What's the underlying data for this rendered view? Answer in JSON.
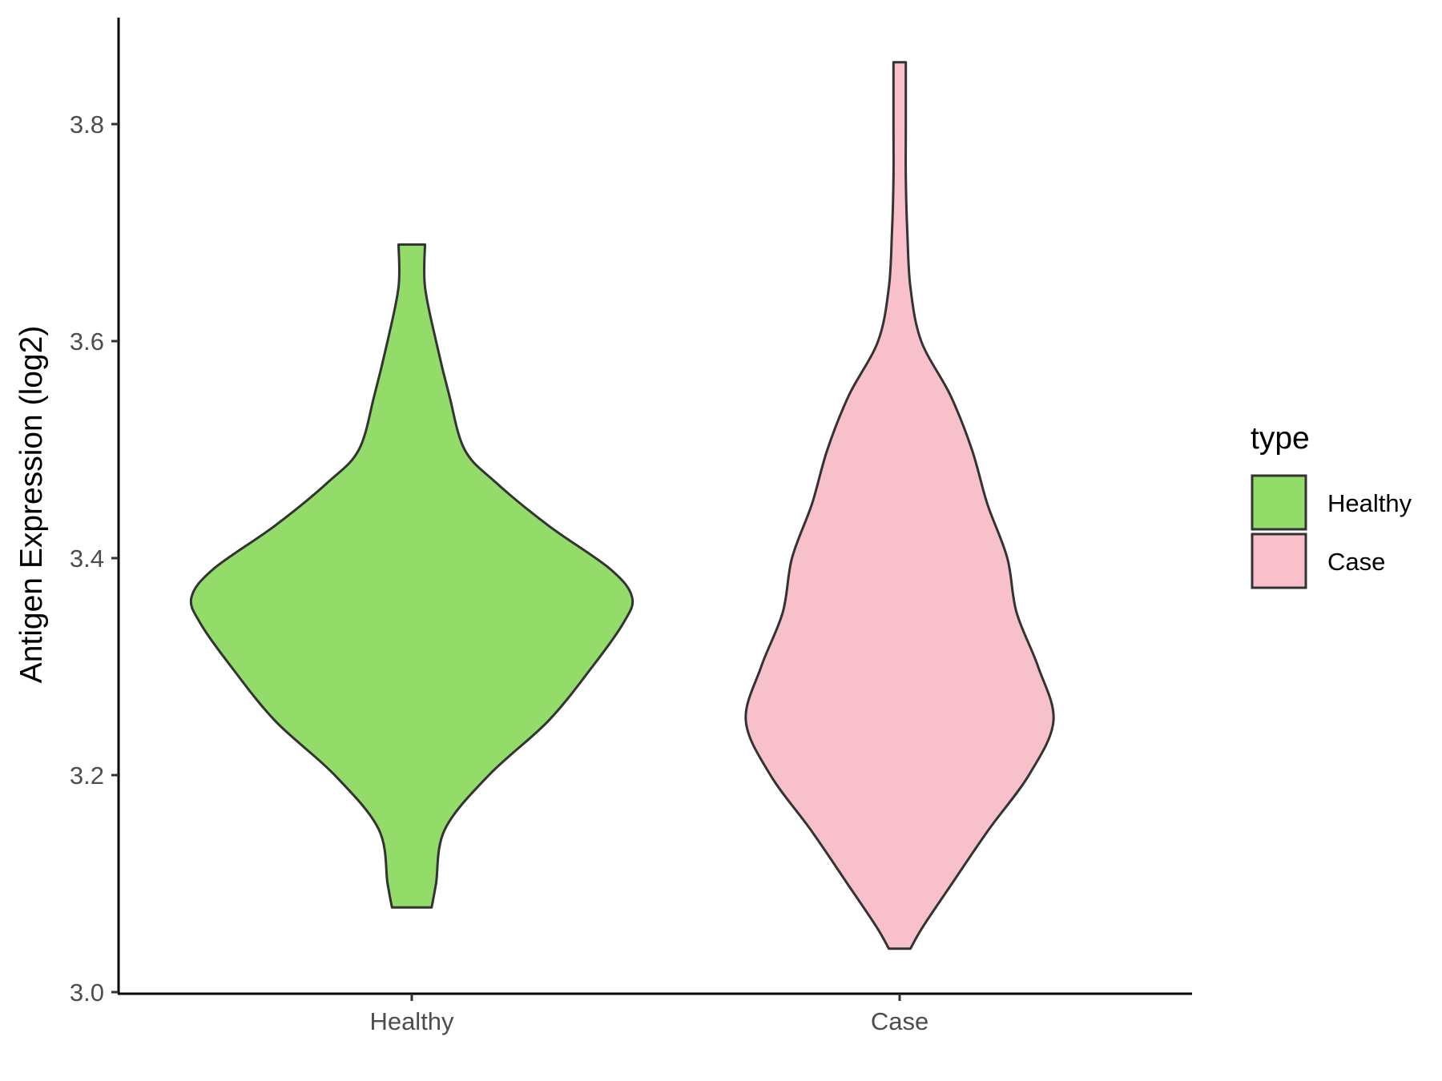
{
  "chart_data": {
    "type": "violin",
    "title": "",
    "xlabel": "",
    "ylabel": "Antigen Expression (log2)",
    "ylim": [
      3.0,
      3.9
    ],
    "yticks": [
      "3.0",
      "3.2",
      "3.4",
      "3.6",
      "3.8"
    ],
    "categories": [
      "Healthy",
      "Case"
    ],
    "grid": false,
    "legend": {
      "title": "type",
      "position": "right",
      "entries": [
        {
          "label": "Healthy",
          "color": "#93dc6a"
        },
        {
          "label": "Case",
          "color": "#f8c0cb"
        }
      ]
    },
    "series": [
      {
        "name": "Healthy",
        "color": "#93dc6a",
        "y_min": 3.078,
        "y_max": 3.689,
        "density_profile": [
          {
            "y": 3.078,
            "w": 0.09
          },
          {
            "y": 3.1,
            "w": 0.11
          },
          {
            "y": 3.15,
            "w": 0.15
          },
          {
            "y": 3.2,
            "w": 0.35
          },
          {
            "y": 3.25,
            "w": 0.62
          },
          {
            "y": 3.3,
            "w": 0.82
          },
          {
            "y": 3.34,
            "w": 0.96
          },
          {
            "y": 3.364,
            "w": 1.0
          },
          {
            "y": 3.39,
            "w": 0.9
          },
          {
            "y": 3.43,
            "w": 0.62
          },
          {
            "y": 3.47,
            "w": 0.38
          },
          {
            "y": 3.5,
            "w": 0.24
          },
          {
            "y": 3.55,
            "w": 0.17
          },
          {
            "y": 3.6,
            "w": 0.11
          },
          {
            "y": 3.65,
            "w": 0.06
          },
          {
            "y": 3.689,
            "w": 0.06
          }
        ]
      },
      {
        "name": "Case",
        "color": "#f8c0cb",
        "y_min": 3.04,
        "y_max": 3.857,
        "density_profile": [
          {
            "y": 3.04,
            "w": 0.07
          },
          {
            "y": 3.06,
            "w": 0.15
          },
          {
            "y": 3.1,
            "w": 0.34
          },
          {
            "y": 3.15,
            "w": 0.58
          },
          {
            "y": 3.2,
            "w": 0.84
          },
          {
            "y": 3.25,
            "w": 1.0
          },
          {
            "y": 3.3,
            "w": 0.9
          },
          {
            "y": 3.35,
            "w": 0.76
          },
          {
            "y": 3.4,
            "w": 0.7
          },
          {
            "y": 3.45,
            "w": 0.57
          },
          {
            "y": 3.5,
            "w": 0.47
          },
          {
            "y": 3.55,
            "w": 0.33
          },
          {
            "y": 3.6,
            "w": 0.14
          },
          {
            "y": 3.65,
            "w": 0.07
          },
          {
            "y": 3.7,
            "w": 0.05
          },
          {
            "y": 3.75,
            "w": 0.04
          },
          {
            "y": 3.8,
            "w": 0.04
          },
          {
            "y": 3.857,
            "w": 0.04
          }
        ]
      }
    ]
  }
}
